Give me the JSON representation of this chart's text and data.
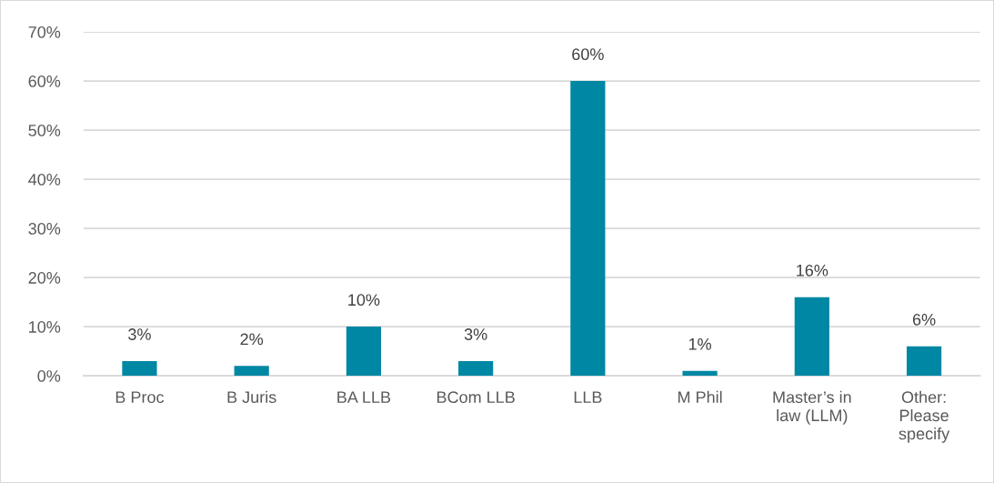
{
  "chart_data": {
    "type": "bar",
    "categories": [
      "B Proc",
      "B Juris",
      "BA LLB",
      "BCom LLB",
      "LLB",
      "M Phil",
      "Master’s in\nlaw (LLM)",
      "Other:\nPlease\nspecify"
    ],
    "values": [
      3,
      2,
      10,
      3,
      60,
      1,
      16,
      6
    ],
    "value_labels": [
      "3%",
      "2%",
      "10%",
      "3%",
      "60%",
      "1%",
      "16%",
      "6%"
    ],
    "color": "#0087a4",
    "ylim": [
      0,
      70
    ],
    "yticks": [
      {
        "value": 0,
        "label": "0%"
      },
      {
        "value": 10,
        "label": "10%"
      },
      {
        "value": 20,
        "label": "20%"
      },
      {
        "value": 30,
        "label": "30%"
      },
      {
        "value": 40,
        "label": "40%"
      },
      {
        "value": 50,
        "label": "50%"
      },
      {
        "value": 60,
        "label": "60%"
      },
      {
        "value": 70,
        "label": "70%"
      }
    ],
    "grid": "y",
    "legend": false
  }
}
